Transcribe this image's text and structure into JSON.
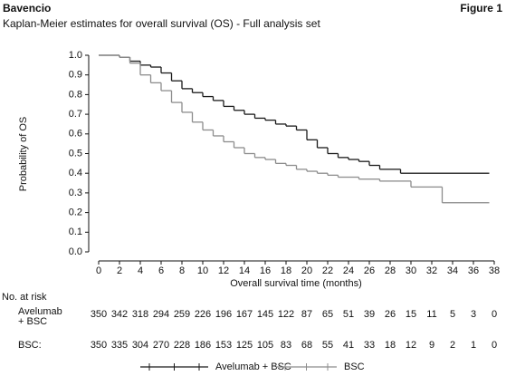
{
  "chart_data": {
    "type": "step",
    "title": "Bavencio",
    "figure_label": "Figure 1",
    "subtitle": "Kaplan-Meier estimates for overall survival (OS) - Full analysis set",
    "x_label": "Overall survival time (months)",
    "y_label": "Probability of OS",
    "xlim": [
      0,
      38
    ],
    "ylim": [
      0,
      1
    ],
    "xticks": [
      0,
      2,
      4,
      6,
      8,
      10,
      12,
      14,
      16,
      18,
      20,
      22,
      24,
      26,
      28,
      30,
      32,
      34,
      36,
      38
    ],
    "yticks": [
      {
        "value": 0,
        "label": "0.0"
      },
      0.1,
      0.2,
      0.3,
      0.4,
      0.5,
      0.6,
      0.7,
      0.8,
      0.9,
      {
        "value": 1,
        "label": "1.0"
      }
    ],
    "x": [
      0,
      1,
      2,
      3,
      4,
      5,
      6,
      7,
      8,
      9,
      10,
      11,
      12,
      13,
      14,
      15,
      16,
      17,
      18,
      19,
      20,
      21,
      22,
      23,
      24,
      25,
      26,
      27,
      28,
      29,
      30,
      31,
      32,
      33,
      34,
      35,
      36,
      37
    ],
    "series": [
      {
        "name": "Avelumab + BSC",
        "color": "#1a1a1a",
        "values": [
          1.0,
          1.0,
          0.99,
          0.97,
          0.95,
          0.94,
          0.91,
          0.87,
          0.83,
          0.81,
          0.79,
          0.77,
          0.74,
          0.72,
          0.7,
          0.68,
          0.67,
          0.65,
          0.64,
          0.62,
          0.57,
          0.53,
          0.5,
          0.48,
          0.47,
          0.46,
          0.44,
          0.42,
          0.42,
          0.4,
          0.4,
          0.4,
          0.4,
          0.4,
          0.4,
          0.4,
          0.4,
          0.4
        ]
      },
      {
        "name": "BSC",
        "color": "#8c8c8c",
        "values": [
          1.0,
          1.0,
          0.99,
          0.96,
          0.9,
          0.86,
          0.82,
          0.76,
          0.71,
          0.66,
          0.62,
          0.59,
          0.56,
          0.53,
          0.5,
          0.48,
          0.47,
          0.45,
          0.44,
          0.42,
          0.41,
          0.4,
          0.39,
          0.38,
          0.38,
          0.37,
          0.37,
          0.36,
          0.36,
          0.36,
          0.33,
          0.33,
          0.33,
          0.25,
          0.25,
          0.25,
          0.25,
          0.25
        ]
      }
    ],
    "risk_title": "No. at risk",
    "risk_rows": [
      {
        "label": "Avelumab + BSC",
        "values": [
          350,
          342,
          318,
          294,
          259,
          226,
          196,
          167,
          145,
          122,
          87,
          65,
          51,
          39,
          26,
          15,
          11,
          5,
          3,
          0
        ]
      },
      {
        "label": "BSC:",
        "values": [
          350,
          335,
          304,
          270,
          228,
          186,
          153,
          125,
          105,
          83,
          68,
          55,
          41,
          33,
          18,
          12,
          9,
          2,
          1,
          0
        ]
      }
    ]
  }
}
